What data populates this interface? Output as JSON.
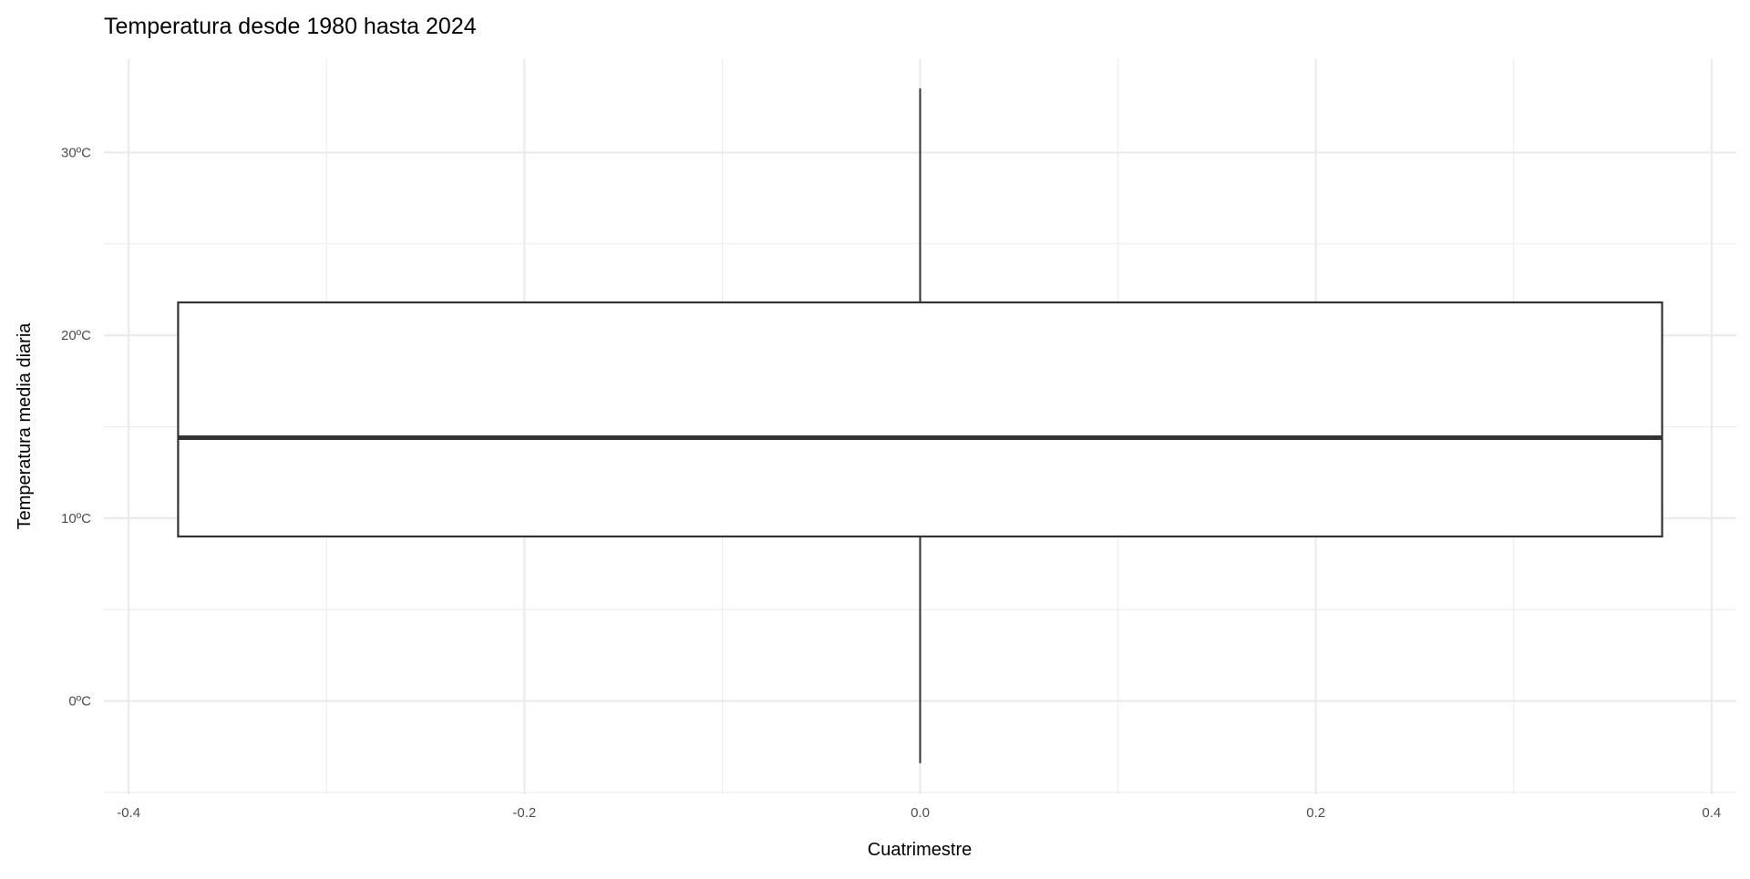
{
  "chart_data": {
    "type": "boxplot",
    "title": "Temperatura desde 1980 hasta 2024",
    "xlabel": "Cuatrimestre",
    "ylabel": "Temperatura media diaria",
    "xlim": [
      -0.4125,
      0.4125
    ],
    "ylim": [
      -5.1,
      35.1
    ],
    "x_ticks": [
      -0.4,
      -0.2,
      0.0,
      0.2,
      0.4
    ],
    "x_tick_labels": [
      "-0.4",
      "-0.2",
      "0.0",
      "0.2",
      "0.4"
    ],
    "y_ticks": [
      0,
      10,
      20,
      30
    ],
    "y_tick_labels": [
      "0ºC",
      "10ºC",
      "20ºC",
      "30ºC"
    ],
    "grid": true,
    "box": {
      "x_center": 0.0,
      "x_left": -0.375,
      "x_right": 0.375,
      "whisker_low": -3.4,
      "q1": 9.0,
      "median": 14.4,
      "q3": 21.8,
      "whisker_high": 33.5
    },
    "colors": {
      "grid": "#ebebeb",
      "box_line": "#333333",
      "fill": "#ffffff",
      "text": "#4d4d4d"
    }
  }
}
